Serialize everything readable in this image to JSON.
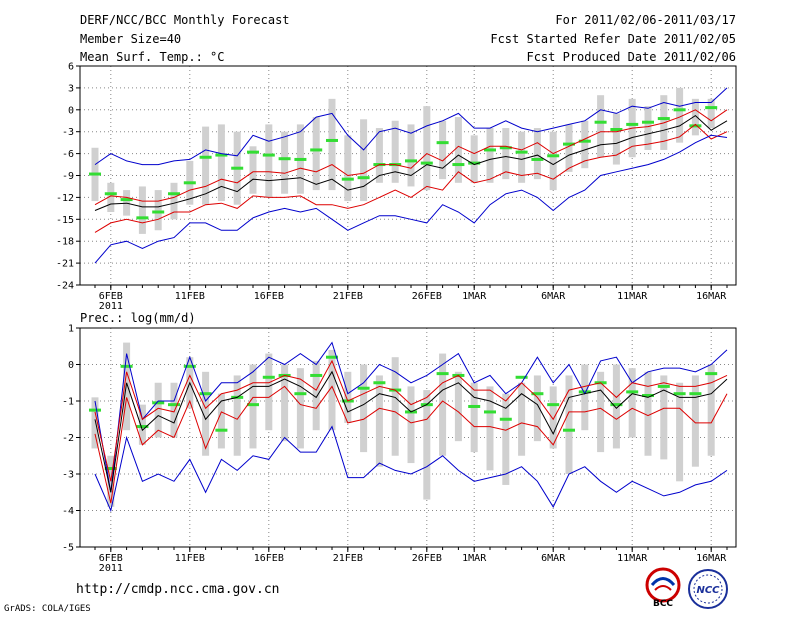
{
  "header": {
    "title": "DERF/NCC/BCC Monthly Forecast",
    "member_size": "Member Size=40",
    "variable": "Mean Surf. Temp.: °C",
    "period": "For 2011/02/06-2011/03/17",
    "fcst_started": "Fcst Started Refer Date 2011/02/05",
    "fcst_produced": "Fcst Produced Date 2011/02/06"
  },
  "footer": {
    "url": "http://cmdp.ncc.cma.gov.cn",
    "grads": "GrADS: COLA/IGES"
  },
  "logos": {
    "bcc": "BCC",
    "ncc": "NCC"
  },
  "colors": {
    "ensemble_mean": "#000000",
    "spread_lines": "#dd0000",
    "extremes": "#0000cc",
    "boxes": "#d0d0d0",
    "members_mark": "#33dd33"
  },
  "chart_data": [
    {
      "type": "line",
      "title": "Mean Surf. Temp.: °C",
      "ylim": [
        -24,
        6
      ],
      "yticks": [
        -24,
        -21,
        -18,
        -15,
        -12,
        -9,
        -6,
        -3,
        0,
        3,
        6
      ],
      "ytick_labels": [
        "-24",
        "-21",
        "-18",
        "-15",
        "-12",
        "-9",
        "-6",
        "-3",
        "0",
        "3",
        "6"
      ],
      "x_days": 40,
      "xticks": [
        {
          "day": 1,
          "label": "6FEB",
          "sub": "2011"
        },
        {
          "day": 6,
          "label": "11FEB"
        },
        {
          "day": 11,
          "label": "16FEB"
        },
        {
          "day": 16,
          "label": "21FEB"
        },
        {
          "day": 21,
          "label": "26FEB"
        },
        {
          "day": 24,
          "label": "1MAR"
        },
        {
          "day": 29,
          "label": "6MAR"
        },
        {
          "day": 34,
          "label": "11MAR"
        },
        {
          "day": 39,
          "label": "16MAR"
        }
      ],
      "series": [
        {
          "name": "max",
          "color": "#0000cc",
          "values": [
            -7.5,
            -6,
            -7,
            -7.5,
            -7.5,
            -7,
            -6.8,
            -5.5,
            -6,
            -6.3,
            -3.5,
            -4.3,
            -3.7,
            -3,
            -1,
            -0.5,
            -3.5,
            -5.5,
            -3,
            -2.5,
            -3.2,
            -2.2,
            -1.5,
            -0.5,
            -2.5,
            -2.5,
            -1.5,
            -2.5,
            -3,
            -2.5,
            -2,
            -1.5,
            0,
            -0.5,
            0.5,
            0.2,
            1,
            0.5,
            1,
            1,
            3
          ]
        },
        {
          "name": "upper",
          "color": "#dd0000",
          "values": [
            -13,
            -11.8,
            -12,
            -12.5,
            -12.5,
            -12,
            -11,
            -10.5,
            -9.5,
            -10,
            -8.5,
            -8.5,
            -8.7,
            -8,
            -8.5,
            -7.5,
            -9,
            -8.7,
            -7.5,
            -7.5,
            -8,
            -6,
            -7,
            -5,
            -6,
            -5,
            -5,
            -5.5,
            -4.5,
            -6,
            -5,
            -4,
            -3,
            -3,
            -2.5,
            -2.3,
            -1.8,
            -1,
            0,
            -1.5,
            0
          ]
        },
        {
          "name": "mean",
          "color": "#000000",
          "values": [
            -13.8,
            -12.9,
            -12.8,
            -13.3,
            -13.3,
            -12.8,
            -12.2,
            -11.5,
            -10.5,
            -11.2,
            -9.5,
            -9.7,
            -9.5,
            -9.3,
            -10.2,
            -9.5,
            -11,
            -10.5,
            -9,
            -8.5,
            -9,
            -7.5,
            -8,
            -6.2,
            -7.5,
            -6.8,
            -6.4,
            -6.8,
            -6.2,
            -7.5,
            -6.2,
            -5.5,
            -4.8,
            -4.6,
            -3.8,
            -3.3,
            -2.8,
            -2.2,
            -0.8,
            -2.8,
            -1.5
          ]
        },
        {
          "name": "lower",
          "color": "#dd0000",
          "values": [
            -16.8,
            -15.5,
            -15,
            -15.5,
            -15,
            -14,
            -14,
            -13,
            -12.8,
            -13.5,
            -11.8,
            -12,
            -12,
            -11.8,
            -13,
            -13,
            -13.5,
            -13,
            -12,
            -11,
            -12,
            -10.5,
            -11,
            -8.5,
            -10,
            -9.5,
            -8.5,
            -9,
            -8.7,
            -9.5,
            -8,
            -7,
            -6.5,
            -6.2,
            -5,
            -4.7,
            -4.3,
            -3.7,
            -2,
            -4,
            -3
          ]
        },
        {
          "name": "min",
          "color": "#0000cc",
          "values": [
            -21,
            -18.5,
            -18,
            -19,
            -18,
            -17.5,
            -15.5,
            -15.5,
            -16.5,
            -16.5,
            -14.8,
            -14,
            -13.5,
            -14,
            -13.5,
            -15,
            -16.5,
            -15.5,
            -14.5,
            -14.5,
            -15,
            -15.5,
            -13,
            -14,
            -15.5,
            -13,
            -11.5,
            -11,
            -12,
            -13.8,
            -12,
            -11,
            -9,
            -8.5,
            -8,
            -7.5,
            -6.8,
            -5.8,
            -4.5,
            -3.5,
            -3.8
          ]
        }
      ],
      "boxes": [
        {
          "lo": -12.5,
          "hi": -5.2,
          "mark": -8.8
        },
        {
          "lo": -14,
          "hi": -10,
          "mark": -11.5
        },
        {
          "lo": -14.5,
          "hi": -11,
          "mark": -12.3
        },
        {
          "lo": -17,
          "hi": -10.5,
          "mark": -14.8
        },
        {
          "lo": -16.5,
          "hi": -11,
          "mark": -14
        },
        {
          "lo": -15,
          "hi": -10,
          "mark": -11.5
        },
        {
          "lo": -13,
          "hi": -7,
          "mark": -10
        },
        {
          "lo": -13,
          "hi": -2.3,
          "mark": -6.5
        },
        {
          "lo": -12.5,
          "hi": -2,
          "mark": -6.2
        },
        {
          "lo": -13,
          "hi": -3,
          "mark": -8
        },
        {
          "lo": -11.5,
          "hi": -5,
          "mark": -5.8
        },
        {
          "lo": -12,
          "hi": -2,
          "mark": -6.2
        },
        {
          "lo": -11.5,
          "hi": -3,
          "mark": -6.7
        },
        {
          "lo": -11.5,
          "hi": -2,
          "mark": -6.8
        },
        {
          "lo": -11,
          "hi": -1,
          "mark": -5.5
        },
        {
          "lo": -11,
          "hi": 1.5,
          "mark": -4.2
        },
        {
          "lo": -12.5,
          "hi": -3.5,
          "mark": -9.5
        },
        {
          "lo": -12.5,
          "hi": -1.3,
          "mark": -9.3
        },
        {
          "lo": -10,
          "hi": -2.5,
          "mark": -7.5
        },
        {
          "lo": -10,
          "hi": -1.5,
          "mark": -7.5
        },
        {
          "lo": -10.5,
          "hi": -2,
          "mark": -7
        },
        {
          "lo": -11,
          "hi": 0.5,
          "mark": -7.3
        },
        {
          "lo": -9.5,
          "hi": -1.5,
          "mark": -4.5
        },
        {
          "lo": -10,
          "hi": -1,
          "mark": -7.5
        },
        {
          "lo": -10,
          "hi": -3.5,
          "mark": -7.3
        },
        {
          "lo": -10,
          "hi": -2.5,
          "mark": -5.5
        },
        {
          "lo": -9.5,
          "hi": -2.5,
          "mark": -5.2
        },
        {
          "lo": -10,
          "hi": -3,
          "mark": -5.8
        },
        {
          "lo": -9.5,
          "hi": -2.5,
          "mark": -6.8
        },
        {
          "lo": -11,
          "hi": -3,
          "mark": -6.3
        },
        {
          "lo": -8.5,
          "hi": -2,
          "mark": -4.7
        },
        {
          "lo": -8,
          "hi": -1.5,
          "mark": -4.3
        },
        {
          "lo": -6.5,
          "hi": 2,
          "mark": -1.7
        },
        {
          "lo": -7.5,
          "hi": -0.5,
          "mark": -2.7
        },
        {
          "lo": -6.5,
          "hi": 1.5,
          "mark": -2
        },
        {
          "lo": -5.5,
          "hi": 0.5,
          "mark": -1.7
        },
        {
          "lo": -5.5,
          "hi": 2,
          "mark": -1.2
        },
        {
          "lo": -4.5,
          "hi": 3,
          "mark": 0
        },
        {
          "lo": -3.5,
          "hi": 1.5,
          "mark": -2.2
        },
        {
          "lo": -2.5,
          "hi": 1.5,
          "mark": 0.3
        }
      ]
    },
    {
      "type": "line",
      "title": "Prec.: log(mm/d)",
      "ylim": [
        -5,
        1
      ],
      "yticks": [
        -5,
        -4,
        -3,
        -2,
        -1,
        0,
        1
      ],
      "ytick_labels": [
        "-5",
        "-4",
        "-3",
        "-2",
        "-1",
        "0",
        "1"
      ],
      "x_days": 40,
      "xticks": [
        {
          "day": 1,
          "label": "6FEB",
          "sub": "2011"
        },
        {
          "day": 6,
          "label": "11FEB"
        },
        {
          "day": 11,
          "label": "16FEB"
        },
        {
          "day": 16,
          "label": "21FEB"
        },
        {
          "day": 21,
          "label": "26FEB"
        },
        {
          "day": 24,
          "label": "1MAR"
        },
        {
          "day": 29,
          "label": "6MAR"
        },
        {
          "day": 34,
          "label": "11MAR"
        },
        {
          "day": 39,
          "label": "16MAR"
        }
      ],
      "series": [
        {
          "name": "max",
          "color": "#0000cc",
          "values": [
            -1,
            -3.5,
            0.3,
            -1.5,
            -1,
            -1,
            0.2,
            -1,
            -0.5,
            -0.5,
            -0.2,
            0.2,
            0,
            0.3,
            0,
            0.6,
            -0.8,
            -0.5,
            0,
            -0.2,
            -0.5,
            -0.3,
            0,
            0.3,
            -0.5,
            -0.3,
            -0.8,
            -0.5,
            0.2,
            -0.5,
            0,
            -0.8,
            0.1,
            0.2,
            -0.5,
            -0.2,
            -0.1,
            -0.1,
            -0.2,
            0,
            0.4
          ]
        },
        {
          "name": "upper",
          "color": "#dd0000",
          "values": [
            -1.3,
            -3.2,
            -0.2,
            -1.5,
            -1.2,
            -1.3,
            -0.3,
            -1.2,
            -0.8,
            -0.7,
            -0.5,
            -0.5,
            -0.3,
            -0.4,
            -0.7,
            0.1,
            -1,
            -0.8,
            -0.6,
            -0.7,
            -1.1,
            -0.9,
            -0.5,
            -0.3,
            -0.7,
            -0.7,
            -1,
            -0.5,
            -0.9,
            -1.5,
            -0.7,
            -0.6,
            -0.5,
            -0.9,
            -0.5,
            -0.6,
            -0.5,
            -0.6,
            -0.6,
            -0.5,
            -0.3
          ]
        },
        {
          "name": "mean",
          "color": "#000000",
          "values": [
            -1.5,
            -3.5,
            -0.5,
            -1.8,
            -1.4,
            -1.6,
            -0.5,
            -1.5,
            -1,
            -0.9,
            -0.6,
            -0.6,
            -0.4,
            -0.6,
            -0.9,
            -0.2,
            -1.3,
            -1.1,
            -0.8,
            -0.9,
            -1.3,
            -1.1,
            -0.7,
            -0.5,
            -0.9,
            -1,
            -1.2,
            -0.8,
            -1.1,
            -1.9,
            -0.9,
            -0.8,
            -0.7,
            -1.2,
            -0.8,
            -0.9,
            -0.7,
            -0.9,
            -0.9,
            -0.8,
            -0.4
          ]
        },
        {
          "name": "lower",
          "color": "#dd0000",
          "values": [
            -1.9,
            -3.8,
            -0.9,
            -2.2,
            -1.8,
            -2,
            -1,
            -2.3,
            -1.3,
            -1.5,
            -0.9,
            -0.9,
            -0.6,
            -1.1,
            -1.2,
            -0.6,
            -1.6,
            -1.5,
            -1.2,
            -1.3,
            -1.6,
            -1.5,
            -1,
            -1.3,
            -1.7,
            -1.7,
            -1.8,
            -1.6,
            -1.7,
            -2.2,
            -1.3,
            -1.3,
            -1.2,
            -1.5,
            -1.2,
            -1.4,
            -1.2,
            -1.2,
            -1.6,
            -1.6,
            -0.8
          ]
        },
        {
          "name": "min",
          "color": "#0000cc",
          "values": [
            -3,
            -4,
            -2,
            -3.2,
            -3,
            -3.2,
            -2.6,
            -3.5,
            -2.6,
            -2.9,
            -2.5,
            -2.6,
            -2,
            -2.4,
            -2.4,
            -1.7,
            -3.1,
            -3.1,
            -2.7,
            -2.9,
            -3,
            -2.8,
            -2.5,
            -2.9,
            -3.2,
            -3.1,
            -3,
            -2.8,
            -3.2,
            -3.9,
            -3,
            -2.8,
            -3.2,
            -3.5,
            -3.2,
            -3.4,
            -3.6,
            -3.5,
            -3.3,
            -3.2,
            -2.9
          ]
        }
      ],
      "boxes": [
        {
          "lo": -2.3,
          "hi": -0.9,
          "mark": -1.25
        },
        {
          "lo": -3.9,
          "hi": -2.5,
          "mark": -2.85
        },
        {
          "lo": -1.8,
          "hi": 0.6,
          "mark": -0.05
        },
        {
          "lo": -2.2,
          "hi": -1.1,
          "mark": -1.7
        },
        {
          "lo": -2,
          "hi": -0.5,
          "mark": -1.05
        },
        {
          "lo": -2,
          "hi": -0.5,
          "mark": -1.1
        },
        {
          "lo": -1.2,
          "hi": 0.2,
          "mark": -0.05
        },
        {
          "lo": -2.5,
          "hi": -0.2,
          "mark": -0.8
        },
        {
          "lo": -2.3,
          "hi": -0.8,
          "mark": -1.8
        },
        {
          "lo": -2.5,
          "hi": -0.3,
          "mark": -0.9
        },
        {
          "lo": -2.3,
          "hi": 0,
          "mark": -1.1
        },
        {
          "lo": -1.8,
          "hi": 0.3,
          "mark": -0.35
        },
        {
          "lo": -2.1,
          "hi": 0,
          "mark": -0.3
        },
        {
          "lo": -2.3,
          "hi": -0.1,
          "mark": -0.8
        },
        {
          "lo": -1.8,
          "hi": 0.1,
          "mark": -0.3
        },
        {
          "lo": -1.8,
          "hi": 0.4,
          "mark": 0.2
        },
        {
          "lo": -1.6,
          "hi": -0.2,
          "mark": -1
        },
        {
          "lo": -2.4,
          "hi": 0,
          "mark": -0.65
        },
        {
          "lo": -2.8,
          "hi": -0.3,
          "mark": -0.5
        },
        {
          "lo": -2.5,
          "hi": 0.2,
          "mark": -0.7
        },
        {
          "lo": -2.7,
          "hi": -0.6,
          "mark": -1.3
        },
        {
          "lo": -3.7,
          "hi": -0.7,
          "mark": -1.1
        },
        {
          "lo": -2.5,
          "hi": 0.3,
          "mark": -0.25
        },
        {
          "lo": -2.1,
          "hi": -0.2,
          "mark": -0.3
        },
        {
          "lo": -2.4,
          "hi": -0.5,
          "mark": -1.15
        },
        {
          "lo": -2.9,
          "hi": -0.6,
          "mark": -1.3
        },
        {
          "lo": -3.3,
          "hi": -0.8,
          "mark": -1.5
        },
        {
          "lo": -2.5,
          "hi": -0.5,
          "mark": -0.35
        },
        {
          "lo": -2.1,
          "hi": -0.3,
          "mark": -0.8
        },
        {
          "lo": -2.3,
          "hi": -0.6,
          "mark": -1.1
        },
        {
          "lo": -3,
          "hi": -0.3,
          "mark": -1.8
        },
        {
          "lo": -1.8,
          "hi": 0,
          "mark": -0.75
        },
        {
          "lo": -2.4,
          "hi": -0.2,
          "mark": -0.5
        },
        {
          "lo": -2.3,
          "hi": 0,
          "mark": -1.1
        },
        {
          "lo": -2,
          "hi": -0.1,
          "mark": -0.75
        },
        {
          "lo": -2.5,
          "hi": -0.2,
          "mark": -0.85
        },
        {
          "lo": -2.6,
          "hi": -0.3,
          "mark": -0.6
        },
        {
          "lo": -3.2,
          "hi": -0.5,
          "mark": -0.8
        },
        {
          "lo": -2.8,
          "hi": -0.3,
          "mark": -0.8
        },
        {
          "lo": -2.5,
          "hi": 0,
          "mark": -0.25
        }
      ]
    }
  ]
}
